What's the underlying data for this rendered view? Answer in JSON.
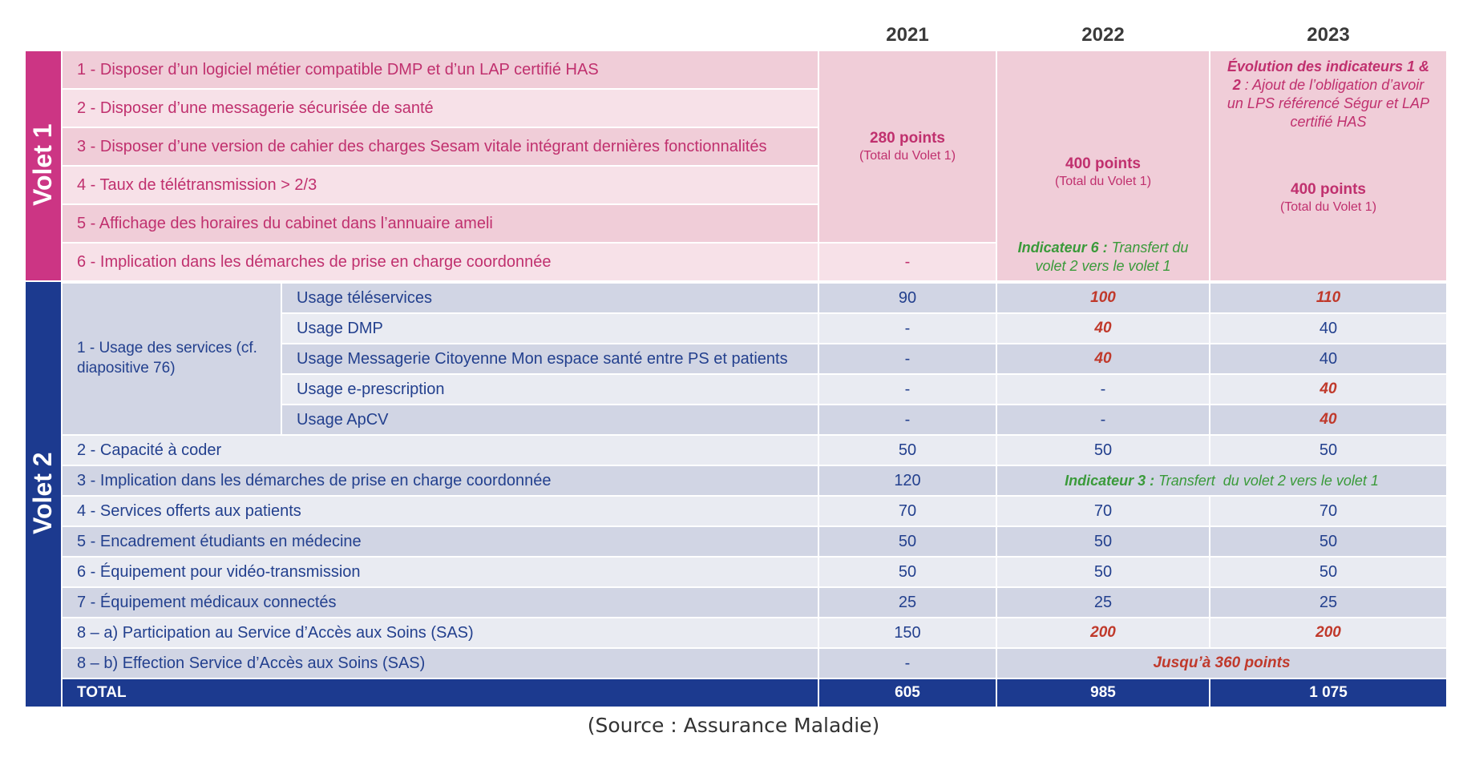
{
  "years": [
    "2021",
    "2022",
    "2023"
  ],
  "volet1": {
    "label": "Volet 1",
    "items": [
      "1 - Disposer d’un logiciel métier compatible DMP et d’un LAP certifié HAS",
      "2 - Disposer d’une messagerie sécurisée de santé",
      "3 - Disposer d’une version de cahier des charges Sesam vitale intégrant dernières fonctionnalités",
      "4 - Taux de télétransmission > 2/3",
      "5 - Affichage des horaires du cabinet dans l’annuaire ameli",
      "6 - Implication dans les démarches de prise en charge coordonnée"
    ],
    "y2021_points": "280 points",
    "y2021_sub": "(Total du Volet 1)",
    "y2021_item6": "-",
    "y2022_points": "400 points",
    "y2022_sub": "(Total du Volet 1)",
    "y2022_note_bold": "Indicateur 6 :",
    "y2022_note_rest": " Transfert du volet 2 vers le volet 1",
    "y2023_evolution_bold": "Évolution des indicateurs 1 & 2",
    "y2023_evolution_rest": " : Ajout de l’obligation d’avoir un LPS référencé Ségur et LAP certifié HAS",
    "y2023_points": "400 points",
    "y2023_sub": "(Total du Volet 1)"
  },
  "volet2": {
    "label": "Volet 2",
    "group1_label": "1 - Usage des services (cf. diapositive 76)",
    "usages": [
      {
        "label": "Usage téléservices",
        "v2021": "90",
        "v2022": "100",
        "v2023": "110"
      },
      {
        "label": "Usage DMP",
        "v2021": "-",
        "v2022": "40",
        "v2023": "40"
      },
      {
        "label": "Usage Messagerie Citoyenne Mon espace santé entre PS et patients",
        "v2021": "-",
        "v2022": "40",
        "v2023": "40"
      },
      {
        "label": "Usage e-prescription",
        "v2021": "-",
        "v2022": "-",
        "v2023": "40"
      },
      {
        "label": "Usage ApCV",
        "v2021": "-",
        "v2022": "-",
        "v2023": "40"
      }
    ],
    "rows": [
      {
        "label": "2 - Capacité à coder",
        "v2021": "50",
        "v2022": "50",
        "v2023": "50"
      },
      {
        "label": "3 - Implication dans les démarches de prise en charge coordonnée",
        "v2021": "120",
        "merged_bold": "Indicateur 3 :",
        "merged_rest": " Transfert  du volet 2 vers le volet 1"
      },
      {
        "label": "4 - Services offerts aux patients",
        "v2021": "70",
        "v2022": "70",
        "v2023": "70"
      },
      {
        "label": "5 - Encadrement étudiants en médecine",
        "v2021": "50",
        "v2022": "50",
        "v2023": "50"
      },
      {
        "label": "6 - Équipement pour vidéo-transmission",
        "v2021": "50",
        "v2022": "50",
        "v2023": "50"
      },
      {
        "label": "7 - Équipement médicaux connectés",
        "v2021": "25",
        "v2022": "25",
        "v2023": "25"
      },
      {
        "label": "8 – a) Participation au Service d’Accès aux Soins (SAS)",
        "v2021": "150",
        "v2022": "200",
        "v2023": "200"
      },
      {
        "label": "8 – b) Effection Service d’Accès aux Soins (SAS)",
        "v2021": "-",
        "merged": "Jusqu’à 360 points"
      }
    ]
  },
  "total": {
    "label": "TOTAL",
    "v2021": "605",
    "v2022": "985",
    "v2023": "1 075"
  },
  "source": "(Source : Assurance Maladie)",
  "colors": {
    "volet1": "#cc3584",
    "volet2": "#1c3a8f",
    "pink_text": "#c0306e",
    "blue_text": "#23408e",
    "green": "#3a9a3a",
    "red": "#c0392b"
  }
}
